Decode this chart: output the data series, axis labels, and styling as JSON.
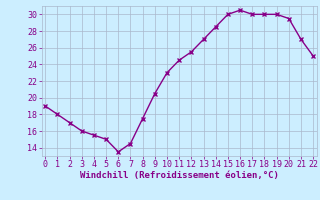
{
  "x": [
    0,
    1,
    2,
    3,
    4,
    5,
    6,
    7,
    8,
    9,
    10,
    11,
    12,
    13,
    14,
    15,
    16,
    17,
    18,
    19,
    20,
    21,
    22
  ],
  "y": [
    19,
    18,
    17,
    16,
    15.5,
    15,
    13.5,
    14.5,
    17.5,
    20.5,
    23,
    24.5,
    25.5,
    27,
    28.5,
    30,
    30.5,
    30,
    30,
    30,
    29.5,
    27,
    25
  ],
  "line_color": "#880088",
  "marker": "x",
  "marker_size": 3.5,
  "marker_linewidth": 1.0,
  "bg_color": "#cceeff",
  "grid_color": "#aab8cc",
  "xlabel": "Windchill (Refroidissement éolien,°C)",
  "xlabel_fontsize": 6.5,
  "ytick_labels": [
    "14",
    "16",
    "18",
    "20",
    "22",
    "24",
    "26",
    "28",
    "30"
  ],
  "yticks": [
    14,
    16,
    18,
    20,
    22,
    24,
    26,
    28,
    30
  ],
  "xticks": [
    0,
    1,
    2,
    3,
    4,
    5,
    6,
    7,
    8,
    9,
    10,
    11,
    12,
    13,
    14,
    15,
    16,
    17,
    18,
    19,
    20,
    21,
    22
  ],
  "ylim": [
    13.0,
    31.0
  ],
  "xlim": [
    -0.3,
    22.3
  ],
  "tick_fontsize": 6,
  "linewidth": 1.0
}
